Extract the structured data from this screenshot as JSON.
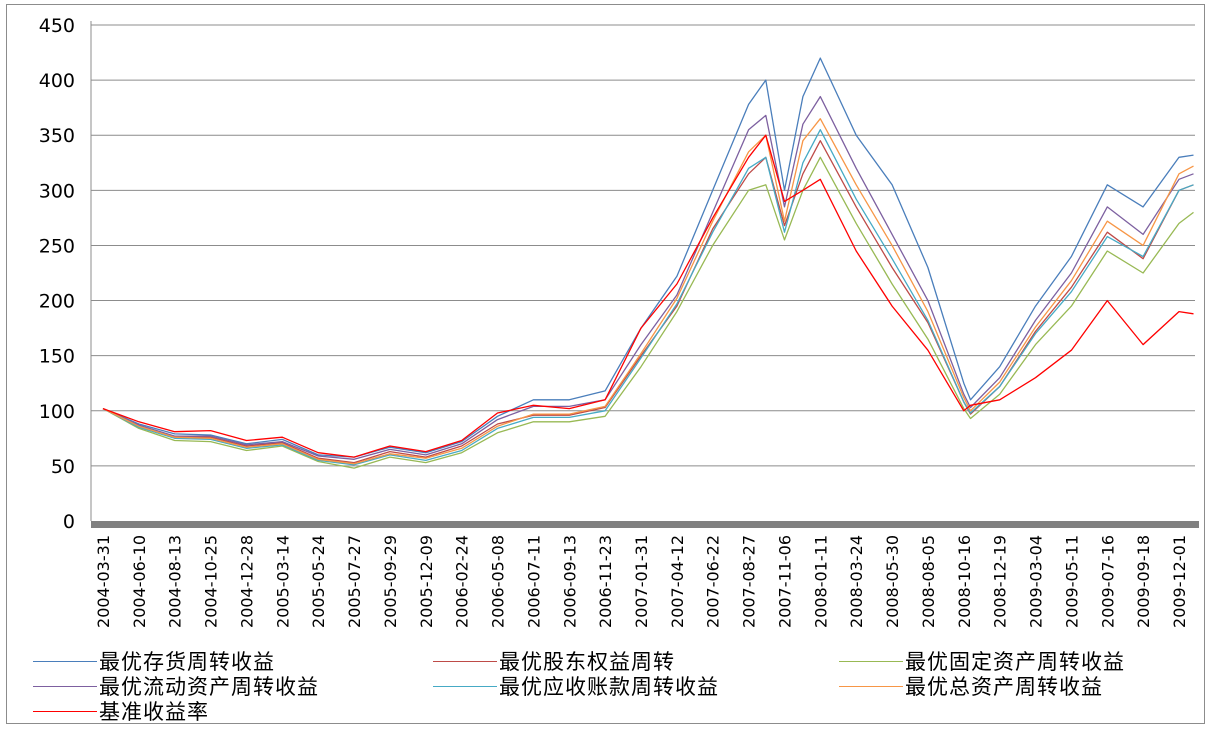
{
  "chart_data": {
    "type": "line",
    "title": "",
    "xlabel": "",
    "ylabel": "",
    "ylim": [
      0,
      450
    ],
    "yticks": [
      0,
      50,
      100,
      150,
      200,
      250,
      300,
      350,
      400,
      450
    ],
    "grid": true,
    "legend_position": "bottom",
    "x_tick_labels": [
      "2004-03-31",
      "2004-06-10",
      "2004-08-13",
      "2004-10-25",
      "2004-12-28",
      "2005-03-14",
      "2005-05-24",
      "2005-07-27",
      "2005-09-29",
      "2005-12-09",
      "2006-02-24",
      "2006-05-08",
      "2006-07-11",
      "2006-09-13",
      "2006-11-23",
      "2007-01-31",
      "2007-04-12",
      "2007-06-22",
      "2007-08-27",
      "2007-11-06",
      "2008-01-11",
      "2008-03-24",
      "2008-05-30",
      "2008-08-05",
      "2008-10-16",
      "2008-12-19",
      "2009-03-04",
      "2009-05-11",
      "2009-07-16",
      "2009-09-18",
      "2009-12-01"
    ],
    "x": [
      "2004-03-31",
      "2004-06-10",
      "2004-08-13",
      "2004-10-25",
      "2004-12-28",
      "2005-03-14",
      "2005-05-24",
      "2005-07-27",
      "2005-09-29",
      "2005-12-09",
      "2006-02-24",
      "2006-05-08",
      "2006-07-11",
      "2006-09-13",
      "2006-11-23",
      "2007-01-31",
      "2007-04-12",
      "2007-06-22",
      "2007-08-27",
      "2007-09-30",
      "2007-11-06",
      "2007-12-10",
      "2008-01-11",
      "2008-03-24",
      "2008-05-30",
      "2008-08-05",
      "2008-10-16",
      "2008-10-28",
      "2008-12-19",
      "2009-03-04",
      "2009-05-11",
      "2009-07-16",
      "2009-09-18",
      "2009-12-01",
      "2009-12-31"
    ],
    "series": [
      {
        "name": "最优存货周转收益",
        "color": "#4a7ebb",
        "values": [
          102,
          88,
          79,
          78,
          70,
          74,
          60,
          58,
          67,
          62,
          72,
          95,
          110,
          110,
          118,
          175,
          222,
          300,
          378,
          400,
          300,
          385,
          420,
          350,
          305,
          230,
          125,
          110,
          140,
          195,
          240,
          305,
          285,
          330,
          332
        ]
      },
      {
        "name": "最优股东权益周转",
        "color": "#be4b48",
        "values": [
          102,
          86,
          76,
          76,
          68,
          71,
          57,
          53,
          63,
          58,
          68,
          88,
          96,
          96,
          103,
          150,
          195,
          265,
          315,
          330,
          268,
          315,
          345,
          285,
          230,
          180,
          108,
          97,
          122,
          172,
          212,
          262,
          238,
          300,
          305
        ]
      },
      {
        "name": "最优固定资产周转收益",
        "color": "#98b954",
        "values": [
          102,
          84,
          73,
          72,
          64,
          68,
          54,
          48,
          58,
          53,
          62,
          80,
          90,
          90,
          95,
          140,
          190,
          250,
          300,
          305,
          255,
          300,
          330,
          270,
          215,
          165,
          102,
          93,
          115,
          160,
          195,
          245,
          225,
          270,
          280
        ]
      },
      {
        "name": "最优流动资产周转收益",
        "color": "#7d60a0",
        "values": [
          102,
          87,
          77,
          77,
          69,
          72,
          59,
          56,
          65,
          60,
          70,
          92,
          104,
          104,
          110,
          160,
          205,
          280,
          355,
          368,
          285,
          360,
          385,
          320,
          260,
          200,
          115,
          103,
          130,
          182,
          225,
          285,
          260,
          310,
          315
        ]
      },
      {
        "name": "最优应收账款周转收益",
        "color": "#46aac5",
        "values": [
          102,
          85,
          75,
          74,
          66,
          69,
          55,
          51,
          60,
          55,
          64,
          84,
          94,
          94,
          100,
          148,
          197,
          262,
          320,
          330,
          262,
          325,
          355,
          292,
          238,
          182,
          108,
          98,
          122,
          170,
          208,
          258,
          240,
          300,
          305
        ]
      },
      {
        "name": "最优总资产周转收益",
        "color": "#f79646",
        "values": [
          102,
          86,
          76,
          75,
          67,
          70,
          56,
          52,
          61,
          57,
          66,
          86,
          97,
          97,
          104,
          152,
          202,
          272,
          335,
          350,
          272,
          345,
          365,
          305,
          250,
          190,
          112,
          100,
          126,
          176,
          218,
          272,
          250,
          315,
          322
        ]
      },
      {
        "name": "基准收益率",
        "color": "#ff0000",
        "values": [
          102,
          90,
          81,
          82,
          73,
          76,
          62,
          58,
          68,
          63,
          73,
          98,
          105,
          102,
          110,
          175,
          215,
          275,
          330,
          350,
          290,
          300,
          310,
          245,
          195,
          155,
          100,
          105,
          110,
          130,
          155,
          200,
          160,
          190,
          188
        ]
      }
    ]
  }
}
